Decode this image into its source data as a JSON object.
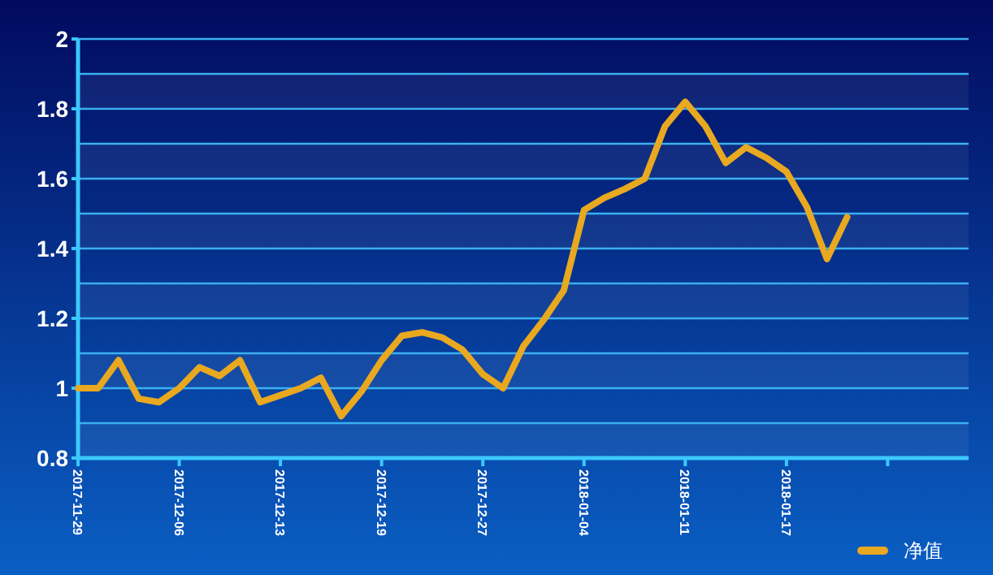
{
  "chart_data": {
    "type": "line",
    "categories": [
      "2017-11-29",
      null,
      null,
      null,
      null,
      "2017-12-06",
      null,
      null,
      null,
      null,
      "2017-12-13",
      null,
      null,
      null,
      null,
      "2017-12-19",
      null,
      null,
      null,
      null,
      "2017-12-27",
      null,
      null,
      null,
      null,
      "2018-01-04",
      null,
      null,
      null,
      null,
      "2018-01-11",
      null,
      null,
      null,
      null,
      "2018-01-17",
      null,
      null,
      null,
      null,
      null,
      null,
      null,
      null,
      null
    ],
    "series": [
      {
        "name": "净值",
        "color": "#e8a820",
        "values": [
          1.0,
          1.0,
          1.08,
          0.97,
          0.96,
          1.0,
          1.06,
          1.035,
          1.08,
          0.96,
          0.98,
          1.0,
          1.03,
          0.92,
          0.99,
          1.08,
          1.15,
          1.16,
          1.145,
          1.11,
          1.04,
          1.0,
          1.12,
          1.195,
          1.28,
          1.51,
          1.545,
          1.57,
          1.6,
          1.75,
          1.82,
          1.75,
          1.645,
          1.69,
          1.66,
          1.62,
          1.52,
          1.37,
          1.49,
          null,
          null,
          null,
          null,
          null,
          null
        ]
      }
    ],
    "ylim": [
      0.8,
      2
    ],
    "yticks": [
      0.8,
      {
        "value": 0.9,
        "label": null
      },
      1,
      {
        "value": 1.1,
        "label": null
      },
      1.2,
      {
        "value": 1.3,
        "label": null
      },
      1.4,
      {
        "value": 1.5,
        "label": null
      },
      1.6,
      {
        "value": 1.7,
        "label": null
      },
      1.8,
      {
        "value": 1.9,
        "label": null
      },
      2
    ],
    "grid": "y",
    "legend": "bottom right",
    "marker": "none",
    "line_style": "solid"
  }
}
